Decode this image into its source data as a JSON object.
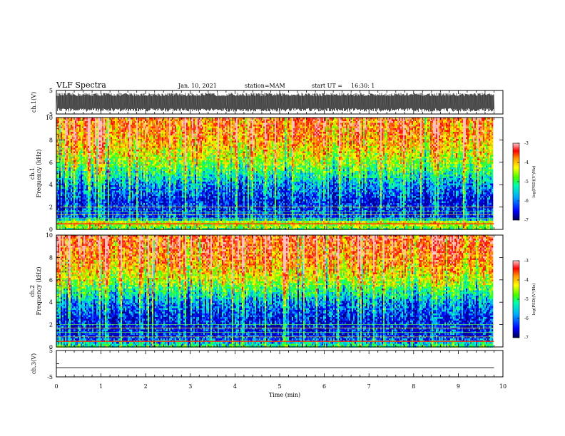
{
  "header": {
    "title": "VLF Spectra",
    "date": "Jan. 10, 2021",
    "station": "station=MAM",
    "start": "start UT =",
    "start_time": "16:30: 1"
  },
  "chart_data": [
    {
      "type": "line",
      "panel": "ch1-waveform",
      "ylabel": "ch.1(V)",
      "ylim": [
        -5,
        5
      ],
      "yticks": [
        "5",
        "-5"
      ],
      "xlim": [
        0,
        10
      ],
      "x_end": 9.8,
      "signal": "dense oscillation filling about -4 to +4 V"
    },
    {
      "type": "heatmap",
      "panel": "ch1-spectrogram",
      "ylabel_top": "ch.1",
      "ylabel": "Frequency (kHz)",
      "ylim": [
        0,
        10
      ],
      "yticks": [
        "0",
        "2",
        "4",
        "6",
        "8",
        "10"
      ],
      "xlim": [
        0,
        10
      ],
      "x_end": 9.8,
      "colorbar": {
        "label": "log(PSD)(V²/Hz)",
        "range": [
          -7,
          -3
        ],
        "ticks": [
          "-3",
          "-4",
          "-5",
          "-6",
          "-7"
        ]
      },
      "horizontal_lines_khz": [
        0.5,
        0.75,
        1.0,
        1.3,
        1.6,
        2.0
      ],
      "level_profile": [
        {
          "f": 0,
          "v": -5.2
        },
        {
          "f": 0.6,
          "v": -4.4
        },
        {
          "f": 1.0,
          "v": -6.3
        },
        {
          "f": 2.5,
          "v": -6.5
        },
        {
          "f": 4.0,
          "v": -6.0
        },
        {
          "f": 6.0,
          "v": -4.8
        },
        {
          "f": 8.0,
          "v": -4.0
        },
        {
          "f": 10.0,
          "v": -3.7
        }
      ]
    },
    {
      "type": "heatmap",
      "panel": "ch2-spectrogram",
      "ylabel_top": "ch.2",
      "ylabel": "Frequency (kHz)",
      "ylim": [
        0,
        10
      ],
      "yticks": [
        "0",
        "2",
        "4",
        "6",
        "8",
        "10"
      ],
      "xlim": [
        0,
        10
      ],
      "x_end": 9.8,
      "colorbar": {
        "label": "log(PSD)(V²/Hz)",
        "range": [
          -7,
          -3
        ],
        "ticks": [
          "-3",
          "-4",
          "-5",
          "-6",
          "-7"
        ]
      },
      "horizontal_lines_khz": [
        0.5,
        0.9,
        1.3,
        1.7,
        2.0
      ],
      "level_profile": [
        {
          "f": 0,
          "v": -5.2
        },
        {
          "f": 0.5,
          "v": -6.0
        },
        {
          "f": 1.0,
          "v": -6.5
        },
        {
          "f": 2.5,
          "v": -6.5
        },
        {
          "f": 4.0,
          "v": -6.0
        },
        {
          "f": 6.0,
          "v": -4.6
        },
        {
          "f": 8.0,
          "v": -3.8
        },
        {
          "f": 10.0,
          "v": -3.5
        }
      ]
    },
    {
      "type": "line",
      "panel": "ch3-waveform",
      "ylabel": "ch.3(V)",
      "ylim": [
        -5,
        5
      ],
      "yticks": [
        "5",
        "0",
        "-5"
      ],
      "xlim": [
        0,
        10
      ],
      "x_end": 9.8,
      "value": -1.5
    }
  ],
  "x_axis": {
    "label": "Time (min)",
    "ticks": [
      "0",
      "1",
      "2",
      "3",
      "4",
      "5",
      "6",
      "7",
      "8",
      "9",
      "10"
    ]
  },
  "colormap": [
    "#00008b",
    "#0000ff",
    "#00aaff",
    "#00ffb0",
    "#40ff00",
    "#ffff00",
    "#ff9900",
    "#ff0000",
    "#ffc0c0"
  ]
}
